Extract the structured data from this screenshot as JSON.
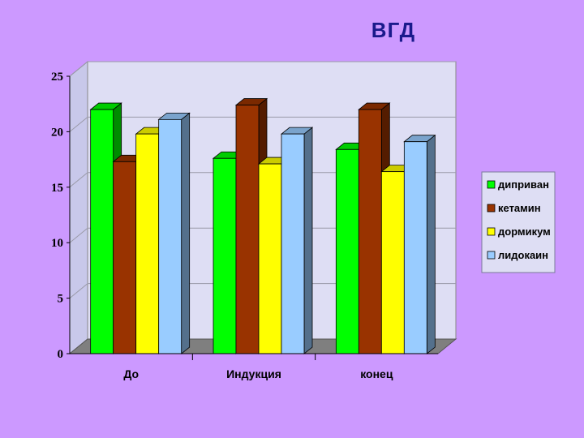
{
  "slide": {
    "title": "ВГД"
  },
  "colors": {
    "background": "#cc99ff",
    "plot_wall": "#dedef4",
    "floor": "#7f7f7f"
  },
  "chart_data": {
    "type": "bar",
    "title": "ВГД",
    "categories": [
      "До",
      "Индукция",
      "конец"
    ],
    "series": [
      {
        "name": "диприван",
        "values": [
          22,
          17.6,
          18.4
        ],
        "color": "#00ff00"
      },
      {
        "name": "кетамин",
        "values": [
          17.3,
          22.4,
          22
        ],
        "color": "#993300"
      },
      {
        "name": "дормикум",
        "values": [
          19.8,
          17.1,
          16.4
        ],
        "color": "#ffff00"
      },
      {
        "name": "лидокаин",
        "values": [
          21.1,
          19.8,
          19.1
        ],
        "color": "#99ccff"
      }
    ],
    "yticks": [
      "0",
      "5",
      "10",
      "15",
      "20",
      "25"
    ],
    "ylim": [
      0,
      25
    ],
    "grid": true,
    "legend_position": "right"
  }
}
